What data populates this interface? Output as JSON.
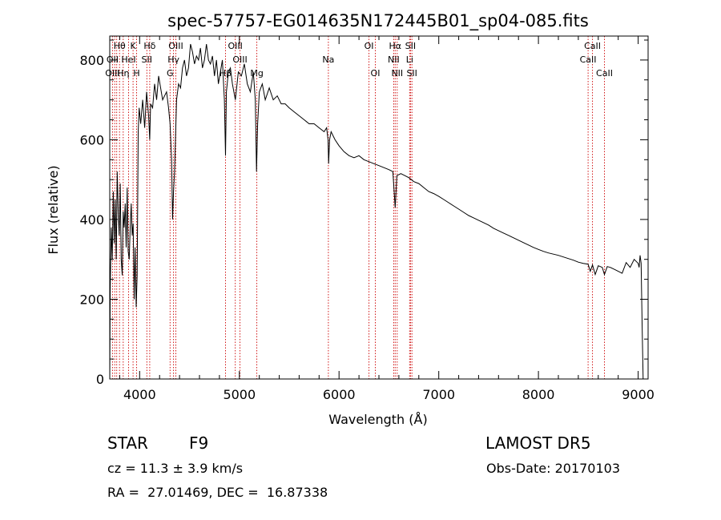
{
  "chart_data": {
    "type": "line",
    "title": "spec-57757-EG014635N172445B01_sp04-085.fits",
    "xlabel": "Wavelength (Å)",
    "ylabel": "Flux (relative)",
    "xlim": [
      3700,
      9100
    ],
    "ylim": [
      0,
      860
    ],
    "x_ticks": [
      4000,
      5000,
      6000,
      7000,
      8000,
      9000
    ],
    "y_ticks": [
      0,
      200,
      400,
      600,
      800
    ],
    "grid": false,
    "series": [
      {
        "x": [
          3700,
          3705,
          3715,
          3725,
          3735,
          3745,
          3755,
          3765,
          3775,
          3785,
          3795,
          3805,
          3815,
          3825,
          3835,
          3845,
          3855,
          3865,
          3875,
          3885,
          3895,
          3905,
          3915,
          3925,
          3935,
          3945,
          3955,
          3965,
          3975,
          3985,
          3995,
          4010,
          4030,
          4050,
          4070,
          4090,
          4101,
          4110,
          4130,
          4150,
          4170,
          4190,
          4210,
          4230,
          4250,
          4270,
          4290,
          4305,
          4320,
          4330,
          4340,
          4350,
          4370,
          4390,
          4410,
          4430,
          4450,
          4470,
          4490,
          4510,
          4530,
          4550,
          4570,
          4590,
          4610,
          4630,
          4650,
          4670,
          4690,
          4710,
          4730,
          4750,
          4770,
          4790,
          4810,
          4830,
          4850,
          4861,
          4870,
          4890,
          4910,
          4930,
          4960,
          4990,
          5020,
          5050,
          5080,
          5110,
          5140,
          5160,
          5172,
          5183,
          5200,
          5230,
          5260,
          5300,
          5340,
          5380,
          5420,
          5460,
          5500,
          5550,
          5600,
          5650,
          5700,
          5750,
          5800,
          5850,
          5875,
          5890,
          5895,
          5905,
          5920,
          5960,
          6000,
          6050,
          6100,
          6150,
          6200,
          6250,
          6300,
          6350,
          6400,
          6450,
          6500,
          6540,
          6563,
          6580,
          6620,
          6660,
          6700,
          6750,
          6800,
          6850,
          6900,
          6950,
          7000,
          7050,
          7100,
          7150,
          7200,
          7250,
          7300,
          7350,
          7400,
          7450,
          7500,
          7550,
          7600,
          7650,
          7700,
          7750,
          7800,
          7850,
          7900,
          7950,
          8000,
          8050,
          8100,
          8150,
          8200,
          8250,
          8300,
          8350,
          8400,
          8450,
          8498,
          8520,
          8542,
          8570,
          8600,
          8640,
          8662,
          8690,
          8720,
          8760,
          8800,
          8840,
          8880,
          8920,
          8960,
          9000,
          9010,
          9020,
          9030,
          9040,
          9050
        ],
        "values": [
          0,
          230,
          380,
          300,
          470,
          340,
          450,
          300,
          520,
          420,
          360,
          490,
          300,
          260,
          420,
          380,
          440,
          330,
          480,
          320,
          300,
          380,
          440,
          360,
          390,
          200,
          330,
          180,
          260,
          620,
          680,
          640,
          700,
          630,
          720,
          660,
          600,
          690,
          680,
          740,
          700,
          760,
          730,
          700,
          710,
          720,
          680,
          640,
          550,
          400,
          470,
          520,
          700,
          740,
          730,
          780,
          800,
          760,
          780,
          840,
          820,
          790,
          810,
          800,
          830,
          780,
          800,
          840,
          800,
          790,
          810,
          760,
          800,
          740,
          770,
          800,
          700,
          560,
          720,
          770,
          780,
          740,
          700,
          770,
          760,
          790,
          740,
          720,
          770,
          700,
          520,
          640,
          720,
          740,
          700,
          730,
          700,
          710,
          690,
          690,
          680,
          670,
          660,
          650,
          640,
          640,
          630,
          620,
          630,
          600,
          540,
          600,
          620,
          600,
          585,
          570,
          560,
          555,
          560,
          550,
          545,
          540,
          535,
          530,
          525,
          520,
          430,
          510,
          515,
          510,
          505,
          495,
          490,
          480,
          470,
          465,
          458,
          450,
          442,
          434,
          426,
          418,
          410,
          404,
          398,
          392,
          386,
          378,
          372,
          366,
          360,
          354,
          348,
          342,
          336,
          330,
          325,
          320,
          316,
          313,
          310,
          306,
          302,
          298,
          293,
          290,
          288,
          270,
          286,
          262,
          284,
          280,
          262,
          282,
          280,
          275,
          270,
          265,
          292,
          280,
          300,
          290,
          280,
          310,
          290,
          140,
          0
        ]
      }
    ],
    "line_labels": [
      {
        "label": "Hθ",
        "x": 3798,
        "row": 1
      },
      {
        "label": "K",
        "x": 3934,
        "row": 1
      },
      {
        "label": "Hδ",
        "x": 4101,
        "row": 1
      },
      {
        "label": "OIII",
        "x": 4363,
        "row": 1
      },
      {
        "label": "OIII",
        "x": 4959,
        "row": 1
      },
      {
        "label": "OI",
        "x": 6300,
        "row": 1
      },
      {
        "label": "Hα",
        "x": 6563,
        "row": 1
      },
      {
        "label": "SII",
        "x": 6717,
        "row": 1
      },
      {
        "label": "CaII",
        "x": 8542,
        "row": 1
      },
      {
        "label": "OII",
        "x": 3727,
        "row": 2
      },
      {
        "label": "HeI",
        "x": 3889,
        "row": 2
      },
      {
        "label": "SII",
        "x": 4072,
        "row": 2
      },
      {
        "label": "Hγ",
        "x": 4340,
        "row": 2
      },
      {
        "label": "OIII",
        "x": 5007,
        "row": 2
      },
      {
        "label": "Na",
        "x": 5893,
        "row": 2
      },
      {
        "label": "NII",
        "x": 6548,
        "row": 2
      },
      {
        "label": "Li",
        "x": 6708,
        "row": 2
      },
      {
        "label": "CaII",
        "x": 8498,
        "row": 2
      },
      {
        "label": "OIII",
        "x": 3727,
        "row": 3
      },
      {
        "label": "Hη",
        "x": 3835,
        "row": 3
      },
      {
        "label": "H",
        "x": 3969,
        "row": 3
      },
      {
        "label": "G",
        "x": 4305,
        "row": 3
      },
      {
        "label": "Hβ",
        "x": 4861,
        "row": 3
      },
      {
        "label": "Mg",
        "x": 5175,
        "row": 3
      },
      {
        "label": "OI",
        "x": 6364,
        "row": 3
      },
      {
        "label": "NII",
        "x": 6583,
        "row": 3
      },
      {
        "label": "SII",
        "x": 6731,
        "row": 3
      },
      {
        "label": "CaII",
        "x": 8662,
        "row": 3
      }
    ],
    "marker_lines": [
      3727,
      3750,
      3770,
      3798,
      3835,
      3889,
      3934,
      3969,
      4072,
      4101,
      4305,
      4340,
      4363,
      4861,
      4959,
      5007,
      5175,
      5893,
      6300,
      6364,
      6548,
      6563,
      6583,
      6708,
      6717,
      6731,
      8498,
      8542,
      8662
    ]
  },
  "info": {
    "object_class": "STAR",
    "subclass": "F9",
    "survey": "LAMOST DR5",
    "redshift": "cz = 11.3 ± 3.9 km/s",
    "obs_date": "Obs-Date: 20170103",
    "coords": "RA =  27.01469, DEC =  16.87338"
  },
  "colors": {
    "line": "#000000",
    "markers": "#cc0000",
    "background": "#ffffff"
  }
}
